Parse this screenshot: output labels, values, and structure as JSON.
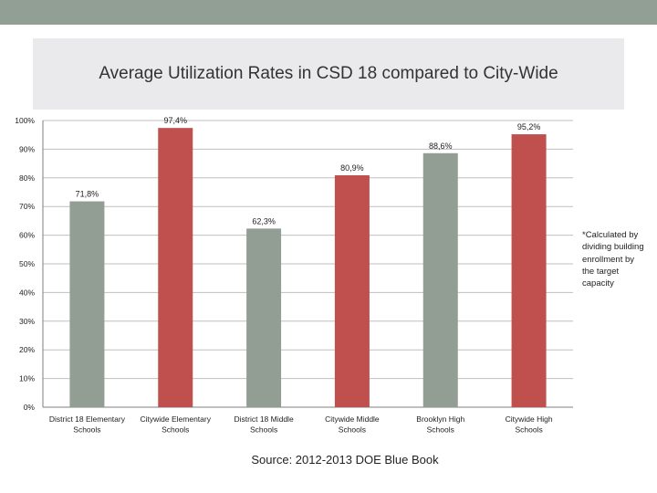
{
  "title": "Average Utilization Rates in CSD 18 compared to City-Wide",
  "footnote": "*Calculated by dividing building enrollment by the target capacity",
  "source": "Source: 2012-2013 DOE Blue Book",
  "colors": {
    "gray_bar": "#929e94",
    "red_bar": "#c0504d",
    "top_band": "#919f95",
    "title_box": "#eaeaec"
  },
  "chart_data": {
    "type": "bar",
    "title": "Average Utilization Rates in CSD 18 compared to City-Wide",
    "categories": [
      "District 18 Elementary Schools",
      "Citywide Elementary Schools",
      "District 18 Middle Schools",
      "Citywide Middle Schools",
      "Brooklyn High Schools",
      "Citywide High Schools"
    ],
    "category_lines": [
      [
        "District 18 Elementary",
        "Schools"
      ],
      [
        "Citywide Elementary",
        "Schools"
      ],
      [
        "District 18 Middle",
        "Schools"
      ],
      [
        "Citywide Middle",
        "Schools"
      ],
      [
        "Brooklyn High",
        "Schools"
      ],
      [
        "Citywide High",
        "Schools"
      ]
    ],
    "values": [
      71.8,
      97.4,
      62.3,
      80.9,
      88.6,
      95.2
    ],
    "data_labels": [
      "71,8%",
      "97,4%",
      "62,3%",
      "80,9%",
      "88,6%",
      "95,2%"
    ],
    "bar_colors": [
      "gray",
      "red",
      "gray",
      "red",
      "gray",
      "red"
    ],
    "yticks": [
      0,
      10,
      20,
      30,
      40,
      50,
      60,
      70,
      80,
      90,
      100
    ],
    "ytick_labels": [
      "0%",
      "10%",
      "20%",
      "30%",
      "40%",
      "50%",
      "60%",
      "70%",
      "80%",
      "90%",
      "100%"
    ],
    "ylim": [
      0,
      100
    ],
    "grid": true,
    "xlabel": "",
    "ylabel": ""
  }
}
